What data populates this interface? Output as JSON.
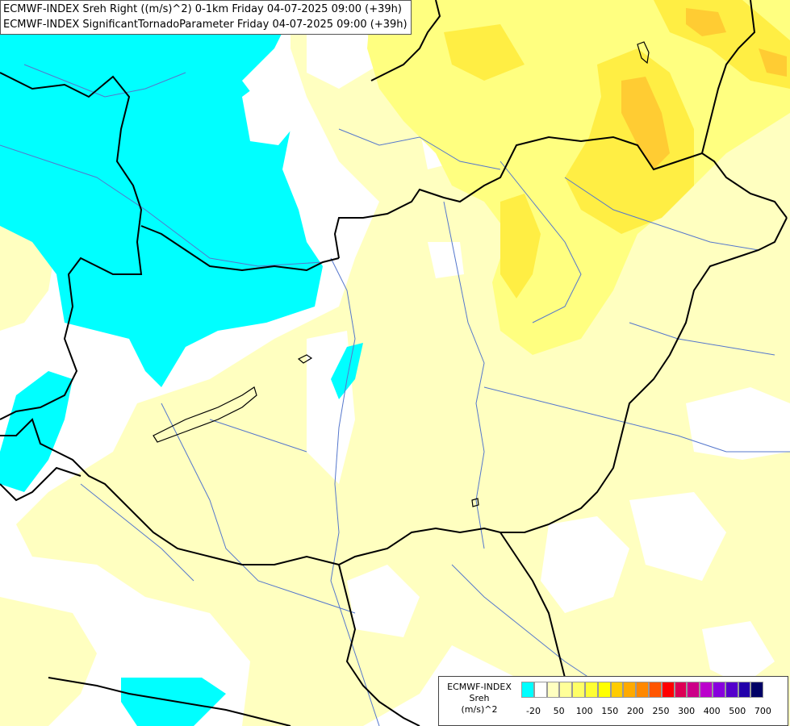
{
  "header": {
    "line1": "ECMWF-INDEX Sreh Right ((m/s)^2) 0-1km Friday 04-07-2025 09:00 (+39h)",
    "line2": "ECMWF-INDEX SignificantTornadoParameter Friday 04-07-2025 09:00 (+39h)"
  },
  "legend": {
    "title_lines": [
      "ECMWF-INDEX",
      "Sreh",
      "(m/s)^2"
    ],
    "colors": [
      "#00ffff",
      "#ffffff",
      "#ffffc0",
      "#ffff99",
      "#ffff66",
      "#ffff33",
      "#ffff00",
      "#ffcc00",
      "#ffaa00",
      "#ff8800",
      "#ff5500",
      "#ff0000",
      "#dd0055",
      "#cc0088",
      "#bb00cc",
      "#8800dd",
      "#5500cc",
      "#2200aa",
      "#000066"
    ],
    "ticks": [
      "-20",
      "50",
      "100",
      "150",
      "200",
      "250",
      "300",
      "400",
      "500",
      "700"
    ]
  },
  "map_colors": {
    "negative": "#00ffff",
    "light": "#ffffc0",
    "medium": "#ffff80",
    "strong": "#ffee44",
    "peak": "#ffcc33",
    "border": "#000000",
    "river": "#5577cc"
  }
}
